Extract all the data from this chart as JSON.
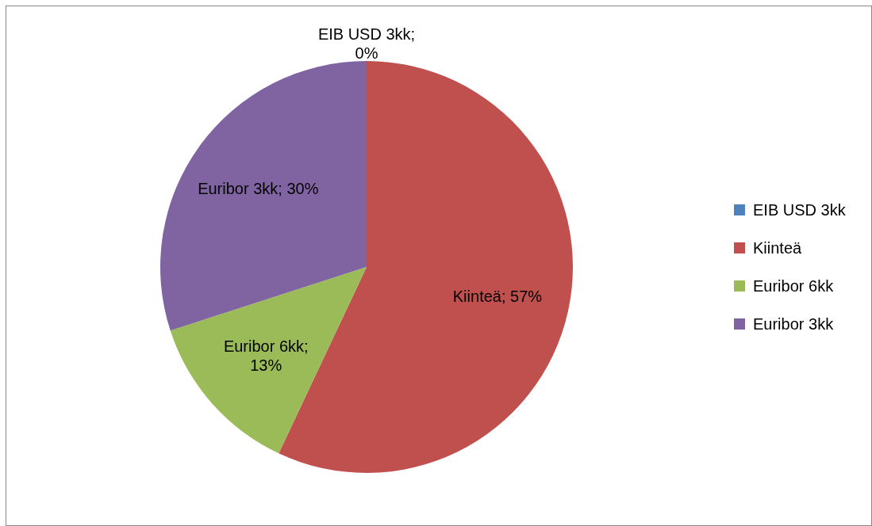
{
  "chart_data": {
    "type": "pie",
    "categories": [
      "EIB USD 3kk",
      "Kiinteä",
      "Euribor 6kk",
      "Euribor 3kk"
    ],
    "values": [
      0,
      57,
      13,
      30
    ],
    "colors": [
      "#4f81bd",
      "#c0504d",
      "#9bbb59",
      "#8064a2"
    ],
    "value_labels": [
      "EIB USD 3kk; 0%",
      "Kiinteä; 57%",
      "Euribor 6kk; 13%",
      "Euribor 3kk; 30%"
    ],
    "legend": "right"
  }
}
